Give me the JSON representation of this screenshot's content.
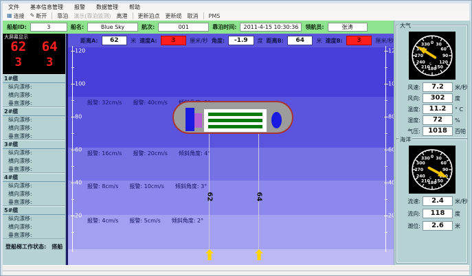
{
  "menu": {
    "items": [
      "文件",
      "基本信息管理",
      "报警",
      "数据管理",
      "帮助"
    ]
  },
  "toolbar": {
    "groups": [
      [
        {
          "label": "连接",
          "icon": "connect-icon"
        },
        {
          "label": "断开",
          "icon": "disconnect-icon"
        }
      ],
      [
        {
          "label": "靠泊"
        },
        {
          "label": "演示(靠泊监测)",
          "disabled": true
        },
        {
          "label": "离港"
        }
      ],
      [
        {
          "label": "更新泊点"
        },
        {
          "label": "更新缆"
        },
        {
          "label": "取消"
        }
      ],
      [
        {
          "label": "PMS"
        }
      ]
    ]
  },
  "ship_info": {
    "fields": [
      {
        "label": "船舶ID:",
        "value": "3"
      },
      {
        "label": "船名:",
        "value": "Blue Sky"
      },
      {
        "label": "航次:",
        "value": "001"
      },
      {
        "label": "靠泊时间:",
        "value": "2011-4-15 10:30:36"
      },
      {
        "label": "领航员:",
        "value": "张涛"
      }
    ]
  },
  "measurements": {
    "fields": [
      {
        "label": "距离A:",
        "value": "62",
        "unit": "米",
        "alarm": false
      },
      {
        "label": "速度A:",
        "value": "3",
        "unit": "厘米/秒",
        "alarm": true
      },
      {
        "label": "角度:",
        "value": "-1.9",
        "unit": "度",
        "alarm": false
      },
      {
        "label": "距离B:",
        "value": "64",
        "unit": "米",
        "alarm": false
      },
      {
        "label": "速度B:",
        "value": "3",
        "unit": "厘米/秒",
        "alarm": true
      }
    ]
  },
  "big_display": {
    "title": "大屏幕显示",
    "row1": [
      "62",
      "64"
    ],
    "row2": [
      "3",
      "3"
    ],
    "text_color": "#ff1f1f"
  },
  "cables": {
    "groups": [
      {
        "name": "1#缆",
        "items": [
          "纵向漂移:",
          "横向漂移:",
          "垂直漂移:"
        ]
      },
      {
        "name": "2#缆",
        "items": [
          "纵向漂移:",
          "横向漂移:",
          "垂直漂移:"
        ]
      },
      {
        "name": "3#缆",
        "items": [
          "纵向漂移:",
          "横向漂移:",
          "垂直漂移:"
        ]
      },
      {
        "name": "4#缆",
        "items": [
          "纵向漂移:",
          "横向漂移:",
          "垂直漂移:"
        ]
      },
      {
        "name": "5#缆",
        "items": [
          "纵向漂移:",
          "横向漂移:",
          "垂直漂移:"
        ]
      }
    ]
  },
  "gangway": {
    "label": "登船梯工作状态:",
    "value": "搭船"
  },
  "chart": {
    "axis_ticks": [
      "120",
      "100",
      "80",
      "60",
      "40",
      "20"
    ],
    "bands": [
      {
        "color": "#473fd8",
        "texts": []
      },
      {
        "color": "#5a54df",
        "texts": [
          "报警: 32cm/s",
          "报警: 40cm/s",
          "倾斜角度: 5°"
        ]
      },
      {
        "color": "#7672e6",
        "texts": [
          "报警: 16cm/s",
          "报警: 20cm/s",
          "倾斜角度: 4°"
        ]
      },
      {
        "color": "#8d89ec",
        "texts": [
          "报警: 8cm/s",
          "报警: 10cm/s",
          "倾斜角度: 3°"
        ]
      },
      {
        "color": "#a3a0f1",
        "texts": [
          "报警: 4cm/s",
          "报警: 5cm/s",
          "倾斜角度: 2°"
        ]
      }
    ],
    "mooring_lines": [
      {
        "label": "62"
      },
      {
        "label": "64"
      }
    ]
  },
  "gauge_dial": {
    "labels": [
      "0",
      "30",
      "60",
      "90",
      "120",
      "150",
      "180",
      "210",
      "240",
      "270",
      "300",
      "330"
    ],
    "south_marker": "S",
    "needle_color": "#f2c200"
  },
  "atmosphere": {
    "title": "大气",
    "direction_deg": 302,
    "fields": [
      {
        "label": "风速:",
        "value": "7.2",
        "unit": "米/秒"
      },
      {
        "label": "风向:",
        "value": "302",
        "unit": "度"
      },
      {
        "label": "温度:",
        "value": "11.2",
        "unit": "° C"
      },
      {
        "label": "湿度:",
        "value": "72",
        "unit": "%"
      },
      {
        "label": "气压:",
        "value": "1018",
        "unit": "百帕"
      }
    ]
  },
  "ocean": {
    "title": "海洋",
    "direction_deg": 118,
    "fields": [
      {
        "label": "流速:",
        "value": "2.4",
        "unit": "米/秒"
      },
      {
        "label": "流向:",
        "value": "118",
        "unit": "度"
      },
      {
        "label": "潮位:",
        "value": "2.6",
        "unit": "米"
      }
    ]
  }
}
